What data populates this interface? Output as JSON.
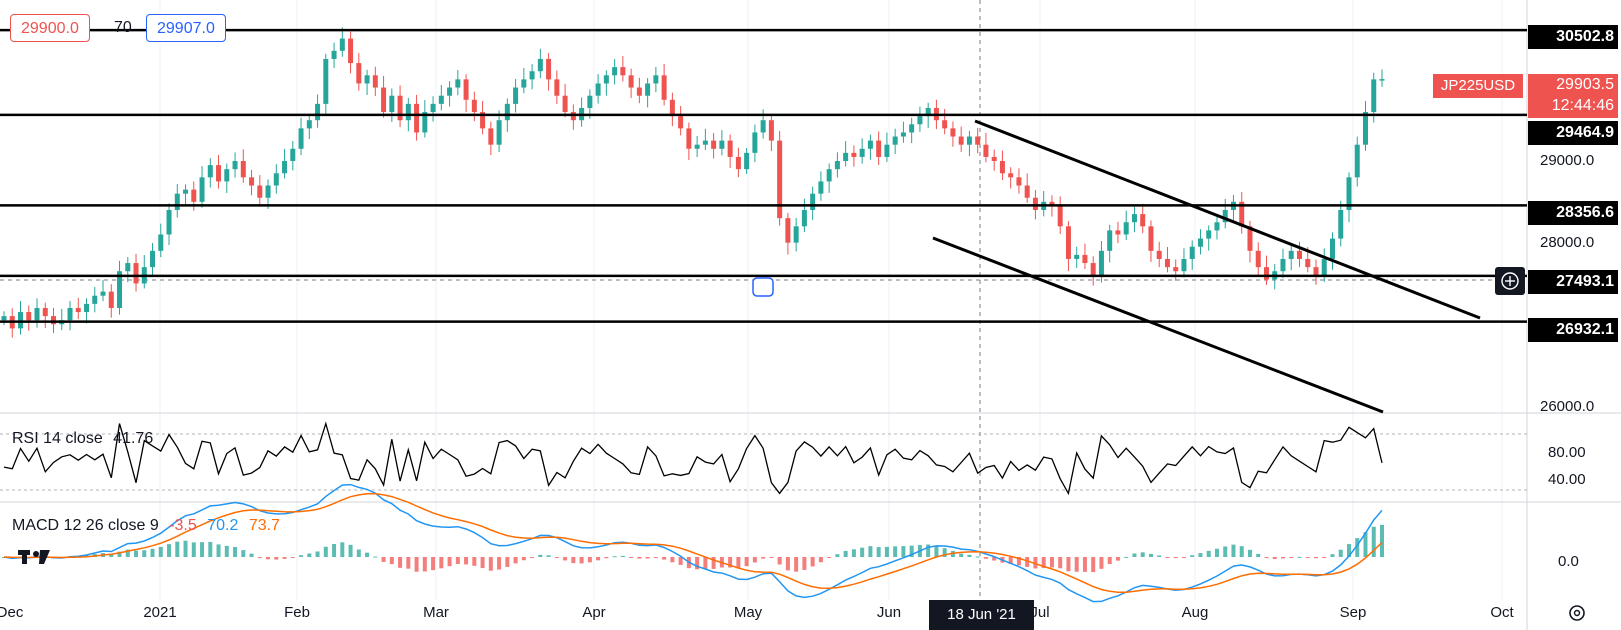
{
  "quotes": {
    "bid": "29900.0",
    "spread": "70",
    "ask": "29907.0"
  },
  "symbol": {
    "name": "JP225USD",
    "price": "29903.5",
    "countdown": "12:44:46"
  },
  "levels": [
    "30502.8",
    "29464.9",
    "28356.6",
    "27493.1",
    "26932.1"
  ],
  "price_axis_ticks": [
    "29000.0",
    "28000.0",
    "26000.0"
  ],
  "rsi": {
    "label": "RSI 14 close",
    "value": "41.76",
    "ticks": [
      "80.00",
      "40.00"
    ]
  },
  "macd": {
    "label": "MACD 12 26 close 9",
    "hist": "-3.5",
    "macd": "70.2",
    "signal": "73.7",
    "tick": "0.0"
  },
  "time_axis": {
    "labels": [
      "Dec",
      "2021",
      "Feb",
      "Mar",
      "Apr",
      "May",
      "Jun",
      "Jul",
      "Aug",
      "Sep",
      "Oct"
    ],
    "crosshair_date": "18 Jun '21"
  },
  "colors": {
    "up": "#26a69a",
    "down": "#ef5350",
    "macd_line": "#2196f3",
    "signal_line": "#ff6d00",
    "symbol_badge": "#ef5350"
  },
  "chart_data": {
    "type": "candlestick",
    "price_range": [
      25850,
      30750
    ],
    "horizontal_levels": [
      30502.8,
      29464.9,
      28356.6,
      27493.1,
      26932.1
    ],
    "closes": [
      27000,
      26850,
      27050,
      26950,
      27100,
      27000,
      26900,
      26950,
      27100,
      27050,
      27150,
      27250,
      27300,
      27100,
      27550,
      27650,
      27400,
      27600,
      27800,
      28000,
      28300,
      28500,
      28550,
      28400,
      28700,
      28850,
      28650,
      28800,
      28900,
      28700,
      28600,
      28450,
      28600,
      28750,
      28900,
      29050,
      29300,
      29400,
      29600,
      30150,
      30250,
      30400,
      30100,
      29850,
      29950,
      29800,
      29500,
      29700,
      29400,
      29600,
      29250,
      29500,
      29600,
      29700,
      29800,
      29900,
      29650,
      29500,
      29300,
      29100,
      29400,
      29600,
      29800,
      29900,
      30000,
      30150,
      29900,
      29700,
      29500,
      29400,
      29550,
      29700,
      29850,
      29950,
      30050,
      29950,
      29800,
      29700,
      29850,
      29950,
      29650,
      29450,
      29300,
      29050,
      29100,
      29150,
      29050,
      29150,
      28950,
      28800,
      29000,
      29250,
      29400,
      29150,
      28200,
      27900,
      28100,
      28300,
      28500,
      28650,
      28800,
      28900,
      29000,
      28950,
      29050,
      29150,
      28950,
      29100,
      29200,
      29250,
      29350,
      29450,
      29550,
      29400,
      29300,
      29200,
      29100,
      29200,
      29100,
      28950,
      28900,
      28750,
      28700,
      28600,
      28450,
      28300,
      28400,
      28350,
      28100,
      27700,
      27750,
      27650,
      27500,
      27800,
      28050,
      28000,
      28150,
      28250,
      28100,
      27800,
      27700,
      27600,
      27550,
      27700,
      27850,
      27950,
      28050,
      28150,
      28300,
      28400,
      28100,
      27800,
      27600,
      27450,
      27550,
      27700,
      27800,
      27700,
      27600,
      27500,
      27700,
      27950,
      28300,
      28700,
      29100,
      29500,
      29900,
      29903.5
    ],
    "horizontal_lines_only": false
  }
}
